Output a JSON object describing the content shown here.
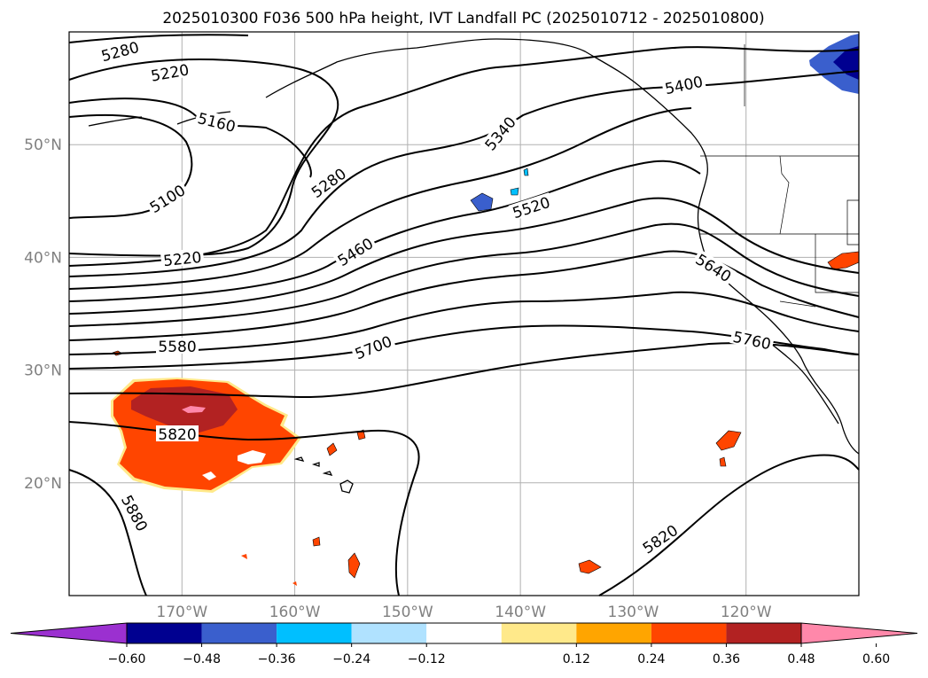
{
  "chart_data": {
    "type": "contour",
    "title": "2025010300 F036 500 hPa height, IVT Landfall PC (2025010712 - 2025010800)",
    "map": {
      "lon_range": [
        180,
        110
      ],
      "lat_range": [
        10,
        60
      ],
      "lon_ticks": [
        170,
        160,
        150,
        140,
        130,
        120
      ],
      "lon_tick_labels": [
        "170°W",
        "160°W",
        "150°W",
        "140°W",
        "130°W",
        "120°W"
      ],
      "lat_ticks": [
        20,
        30,
        40,
        50
      ],
      "lat_tick_labels": [
        "20°N",
        "30°N",
        "40°N",
        "50°N"
      ],
      "grid": true
    },
    "height_contours": {
      "variable": "500 hPa height",
      "interval": 60,
      "labeled_levels": [
        "5100",
        "5160",
        "5220",
        "5220",
        "5280",
        "5280",
        "5340",
        "5400",
        "5460",
        "5520",
        "5580",
        "5640",
        "5700",
        "5760",
        "5820",
        "5820",
        "5880"
      ]
    },
    "ivt_shading": {
      "colorbar_ticks": [
        "−0.60",
        "−0.48",
        "−0.36",
        "−0.24",
        "−0.12",
        "0.12",
        "0.24",
        "0.36",
        "0.48",
        "0.60"
      ],
      "colors": [
        "#9b30d0",
        "#000090",
        "#3a5fcd",
        "#00bfff",
        "#b0e2ff",
        "#ffffff",
        "#ffe98a",
        "#ffa500",
        "#ff4500",
        "#b22222",
        "#ff88aa"
      ],
      "extend": "both"
    }
  }
}
